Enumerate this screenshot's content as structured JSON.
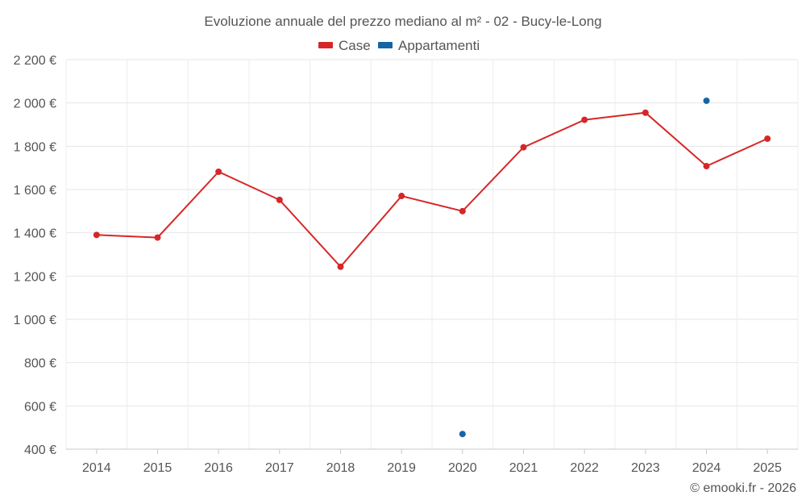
{
  "chart_data": {
    "type": "line",
    "title": "Evoluzione annuale del prezzo mediano al m² - 02 - Bucy-le-Long",
    "categories": [
      "2014",
      "2015",
      "2016",
      "2017",
      "2018",
      "2019",
      "2020",
      "2021",
      "2022",
      "2023",
      "2024",
      "2025"
    ],
    "series": [
      {
        "name": "Case",
        "color": "#d62728",
        "values": [
          1390,
          1378,
          1682,
          1552,
          1243,
          1570,
          1500,
          1795,
          1922,
          1955,
          1708,
          1835
        ]
      },
      {
        "name": "Appartamenti",
        "color": "#1565a7",
        "values": [
          null,
          null,
          null,
          null,
          null,
          null,
          470,
          null,
          null,
          null,
          2010,
          null
        ]
      }
    ],
    "ylim": [
      400,
      2200
    ],
    "yticks": [
      400,
      600,
      800,
      1000,
      1200,
      1400,
      1600,
      1800,
      2000,
      2200
    ],
    "ytick_labels": [
      "400 €",
      "600 €",
      "800 €",
      "1 000 €",
      "1 200 €",
      "1 400 €",
      "1 600 €",
      "1 800 €",
      "2 000 €",
      "2 200 €"
    ],
    "xlabel": "",
    "ylabel": "",
    "grid": true,
    "legend": "top-center"
  },
  "footer": {
    "credit": "© emooki.fr - 2026"
  }
}
